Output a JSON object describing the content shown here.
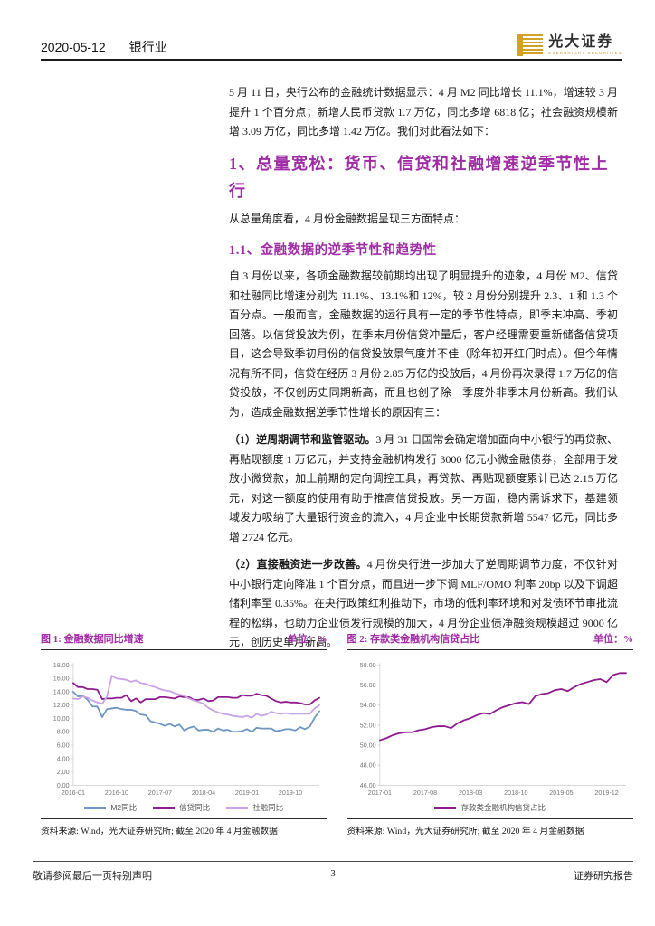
{
  "header": {
    "date": "2020-05-12",
    "industry": "银行业",
    "brand_cn": "光大证券",
    "brand_en": "EVERBRIGHT SECURITIES"
  },
  "body": {
    "p1": "5 月 11 日，央行公布的金融统计数据显示：4 月 M2 同比增长 11.1%，增速较 3 月提升 1 个百分点；新增人民币贷款 1.7 万亿，同比多增 6818 亿；社会融资规模新增 3.09 万亿，同比多增 1.42 万亿。我们对此看法如下：",
    "h1": "1、总量宽松：货币、信贷和社融增速逆季节性上行",
    "p2": "从总量角度看，4 月份金融数据呈现三方面特点：",
    "h2": "1.1、金融数据的逆季节性和趋势性",
    "p3": "自 3 月份以来，各项金融数据较前期均出现了明显提升的迹象，4 月份 M2、信贷和社融同比增速分别为 11.1%、13.1%和 12%，较 2 月份分别提升 2.3、1 和 1.3 个百分点。一般而言，金融数据的运行具有一定的季节性特点，即季末冲高、季初回落。以信贷投放为例，在季末月份信贷冲量后，客户经理需要重新储备信贷项目，这会导致季初月份的信贷投放景气度并不佳（除年初开红门时点）。但今年情况有所不同，信贷在经历 3 月份 2.85 万亿的投放后，4 月份再次录得 1.7 万亿的信贷投放，不仅创历史同期新高，而且也创了除一季度外非季末月份新高。我们认为，造成金融数据逆季节性增长的原因有三：",
    "p4_lead": "（1）逆周期调节和监管驱动。",
    "p4_text": "3 月 31 日国常会确定增加面向中小银行的再贷款、再贴现额度 1 万亿元，并支持金融机构发行 3000 亿元小微金融债券，全部用于发放小微贷款，加上前期的定向调控工具，再贷款、再贴现额度累计已达 2.15 万亿元，对这一额度的使用有助于推高信贷投放。另一方面，稳内需诉求下，基建领域发力吸纳了大量银行资金的流入，4 月企业中长期贷款新增 5547 亿元，同比多增 2724 亿元。",
    "p5_lead": "（2）直接融资进一步改善。",
    "p5_text": "4 月份央行进一步加大了逆周期调节力度，不仅针对中小银行定向降准 1 个百分点，而且进一步下调 MLF/OMO 利率 20bp 以及下调超储利率至 0.35%。在央行政策红利推动下，市场的低利率环境和对发债环节审批流程的松绑，也助力企业债发行规模的加大，4 月份企业债净融资规模超过 9000 亿元，创历史单月新高。"
  },
  "figures": [
    {
      "caption": "图 1: 金融数据同比增速",
      "unit": "单位：%",
      "source": "资料来源: Wind，光大证券研究所; 截至 2020 年 4 月金融数据"
    },
    {
      "caption": "图 2: 存款类金融机构信贷占比",
      "unit": "单位：%",
      "source": "资料来源: Wind，光大证券研究所; 截至 2020 年 4 月金融数据"
    }
  ],
  "chart_data": [
    {
      "type": "line",
      "title": "金融数据同比增速",
      "ylabel": "%",
      "ylim": [
        0,
        18
      ],
      "yticks": [
        0,
        2,
        4,
        6,
        8,
        10,
        12,
        14,
        16,
        18
      ],
      "x_months": [
        "2016-01",
        "2016-02",
        "2016-03",
        "2016-04",
        "2016-05",
        "2016-06",
        "2016-07",
        "2016-08",
        "2016-09",
        "2016-10",
        "2016-11",
        "2016-12",
        "2017-01",
        "2017-02",
        "2017-03",
        "2017-04",
        "2017-05",
        "2017-06",
        "2017-07",
        "2017-08",
        "2017-09",
        "2017-10",
        "2017-11",
        "2017-12",
        "2018-01",
        "2018-02",
        "2018-03",
        "2018-04",
        "2018-05",
        "2018-06",
        "2018-07",
        "2018-08",
        "2018-09",
        "2018-10",
        "2018-11",
        "2018-12",
        "2019-01",
        "2019-02",
        "2019-03",
        "2019-04",
        "2019-05",
        "2019-06",
        "2019-07",
        "2019-08",
        "2019-09",
        "2019-10",
        "2019-11",
        "2019-12",
        "2020-01",
        "2020-02",
        "2020-03",
        "2020-04"
      ],
      "xticks": [
        {
          "i": 0,
          "label": "2016-01"
        },
        {
          "i": 9,
          "label": "2016-10"
        },
        {
          "i": 18,
          "label": "2017-07"
        },
        {
          "i": 27,
          "label": "2018-04"
        },
        {
          "i": 36,
          "label": "2019-01"
        },
        {
          "i": 45,
          "label": "2019-10"
        }
      ],
      "legend_position": "bottom",
      "grid": false,
      "series": [
        {
          "name": "M2同比",
          "color": "#6d96c2",
          "values": [
            14.0,
            13.3,
            13.4,
            12.8,
            11.8,
            11.8,
            10.2,
            11.4,
            11.5,
            11.6,
            11.4,
            11.3,
            11.3,
            11.1,
            10.6,
            10.5,
            9.6,
            9.4,
            9.2,
            8.9,
            9.2,
            8.8,
            9.1,
            8.2,
            8.6,
            8.8,
            8.2,
            8.3,
            8.3,
            8.0,
            8.5,
            8.2,
            8.3,
            8.0,
            8.0,
            8.1,
            8.4,
            8.0,
            8.6,
            8.5,
            8.5,
            8.5,
            8.1,
            8.2,
            8.4,
            8.4,
            8.2,
            8.7,
            8.4,
            8.8,
            10.1,
            11.1
          ]
        },
        {
          "name": "信贷同比",
          "color": "#8e1b8e",
          "values": [
            15.3,
            14.7,
            14.7,
            14.4,
            14.4,
            14.3,
            12.9,
            13.0,
            13.0,
            13.1,
            13.1,
            13.5,
            12.6,
            13.0,
            12.4,
            12.9,
            12.9,
            12.9,
            13.2,
            13.2,
            13.1,
            13.0,
            13.3,
            13.2,
            13.2,
            12.8,
            12.8,
            13.0,
            12.6,
            12.7,
            13.2,
            13.2,
            13.2,
            13.1,
            13.1,
            13.5,
            13.4,
            13.4,
            13.7,
            13.5,
            13.4,
            13.0,
            12.6,
            12.4,
            12.5,
            12.4,
            12.4,
            12.3,
            12.1,
            12.1,
            12.7,
            13.1
          ]
        },
        {
          "name": "社融同比",
          "color": "#c9a3e6",
          "values": [
            13.0,
            12.9,
            13.3,
            13.1,
            12.7,
            12.4,
            12.2,
            13.3,
            16.4,
            16.0,
            15.9,
            15.8,
            15.5,
            15.7,
            15.3,
            15.2,
            14.9,
            14.7,
            14.4,
            14.2,
            14.1,
            13.8,
            13.6,
            13.4,
            13.0,
            12.7,
            12.5,
            12.2,
            11.6,
            11.2,
            10.9,
            10.7,
            10.6,
            10.4,
            10.3,
            10.2,
            10.4,
            10.1,
            10.7,
            10.4,
            10.6,
            11.0,
            10.8,
            10.7,
            10.8,
            10.7,
            10.7,
            10.7,
            10.7,
            10.7,
            11.5,
            12.0
          ]
        }
      ]
    },
    {
      "type": "line",
      "title": "存款类金融机构信贷占比",
      "ylabel": "%",
      "ylim": [
        46,
        58
      ],
      "yticks": [
        46,
        48,
        50,
        52,
        54,
        56,
        58
      ],
      "x_months": [
        "2017-01",
        "2017-02",
        "2017-03",
        "2017-04",
        "2017-05",
        "2017-06",
        "2017-07",
        "2017-08",
        "2017-09",
        "2017-10",
        "2017-11",
        "2017-12",
        "2018-01",
        "2018-02",
        "2018-03",
        "2018-04",
        "2018-05",
        "2018-06",
        "2018-07",
        "2018-08",
        "2018-09",
        "2018-10",
        "2018-11",
        "2018-12",
        "2019-01",
        "2019-02",
        "2019-03",
        "2019-04",
        "2019-05",
        "2019-06",
        "2019-07",
        "2019-08",
        "2019-09",
        "2019-10",
        "2019-11",
        "2019-12",
        "2020-01",
        "2020-02",
        "2020-03"
      ],
      "xticks": [
        {
          "i": 0,
          "label": "2017-01"
        },
        {
          "i": 7,
          "label": "2017-08"
        },
        {
          "i": 14,
          "label": "2018-03"
        },
        {
          "i": 21,
          "label": "2018-10"
        },
        {
          "i": 28,
          "label": "2019-05"
        },
        {
          "i": 35,
          "label": "2019-12"
        }
      ],
      "legend_position": "bottom",
      "grid": false,
      "series": [
        {
          "name": "存款类金融机构信贷占比",
          "color": "#8e1b8e",
          "values": [
            50.5,
            50.7,
            51.0,
            51.2,
            51.3,
            51.3,
            51.5,
            51.6,
            51.8,
            51.9,
            51.9,
            51.7,
            52.2,
            52.5,
            52.7,
            53.0,
            53.2,
            53.1,
            53.5,
            53.8,
            54.0,
            54.2,
            54.3,
            54.1,
            54.9,
            55.1,
            55.2,
            55.5,
            55.6,
            55.4,
            55.8,
            56.1,
            56.3,
            56.5,
            56.6,
            56.3,
            57.0,
            57.2,
            57.2
          ]
        }
      ]
    }
  ],
  "footer": {
    "left": "敬请参阅最后一页特别声明",
    "center": "-3-",
    "right": "证券研究报告"
  },
  "colors": {
    "accent_purple": "#a02ca5",
    "logo_gold": "#d2a125",
    "line_blue": "#6d96c2",
    "line_magenta": "#8e1b8e",
    "line_lilac": "#c9a3e6"
  }
}
